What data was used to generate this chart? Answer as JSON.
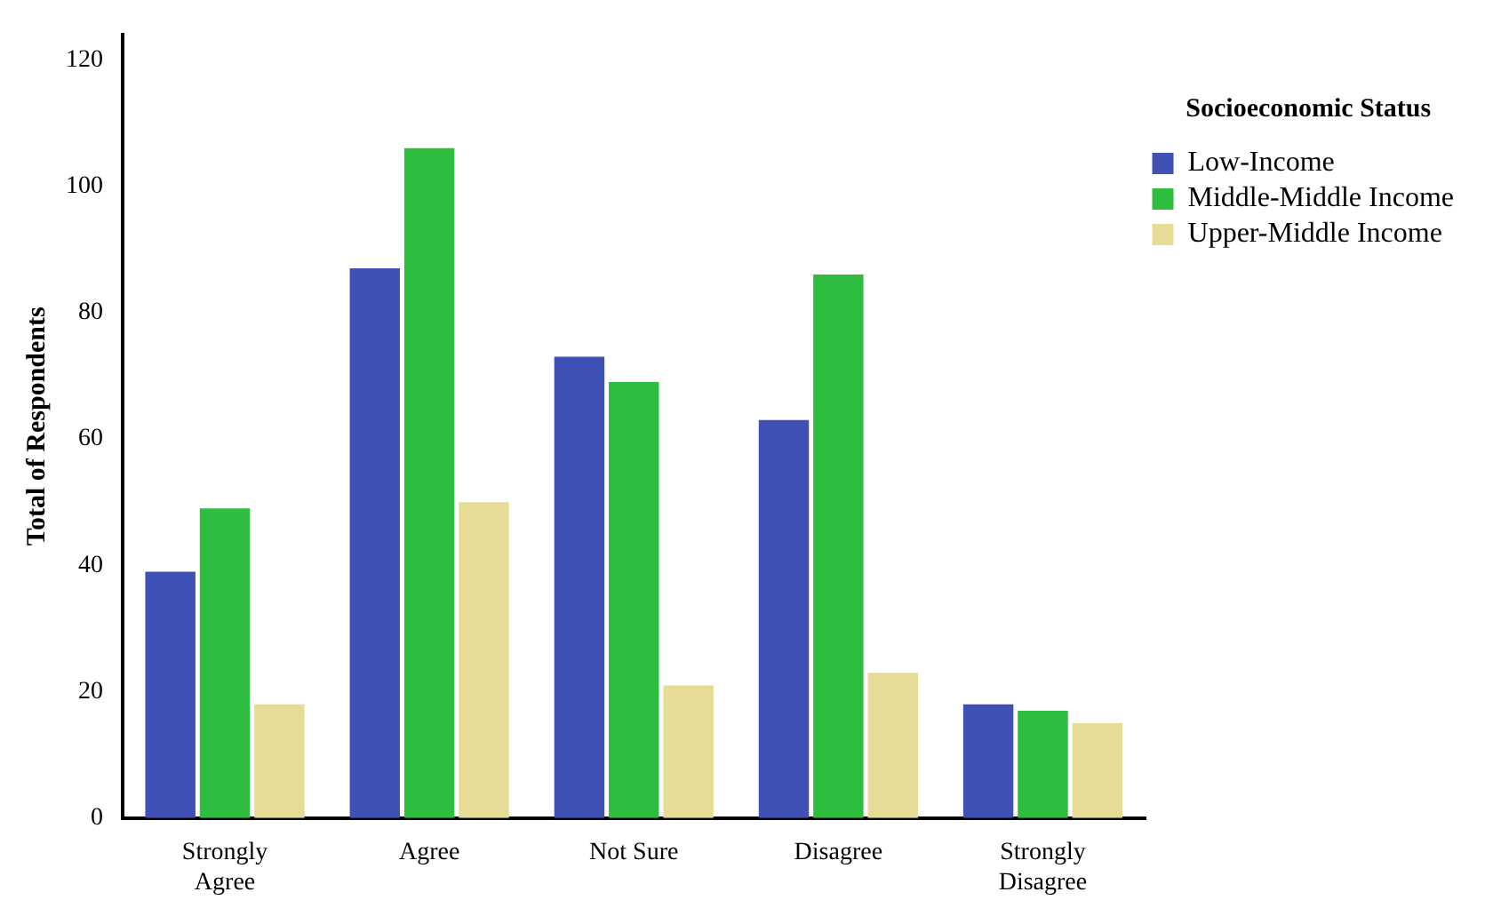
{
  "chart_data": {
    "type": "bar",
    "ylabel": "Total of Respondents",
    "legend_title": "Socioeconomic Status",
    "categories": [
      "Strongly Agree",
      "Agree",
      "Not Sure",
      "Disagree",
      "Strongly Disagree"
    ],
    "series": [
      {
        "name": "Low-Income",
        "color": "#3f51b5",
        "values": [
          39,
          87,
          73,
          63,
          18
        ]
      },
      {
        "name": "Middle-Middle Income",
        "color": "#2ebd3e",
        "values": [
          49,
          106,
          69,
          86,
          17
        ]
      },
      {
        "name": "Upper-Middle Income",
        "color": "#e6dc98",
        "values": [
          18,
          50,
          21,
          23,
          15
        ]
      }
    ],
    "ylim": [
      0,
      124
    ],
    "yticks": [
      0,
      20,
      40,
      60,
      80,
      100,
      120
    ],
    "grid": false,
    "legend": "top right"
  }
}
